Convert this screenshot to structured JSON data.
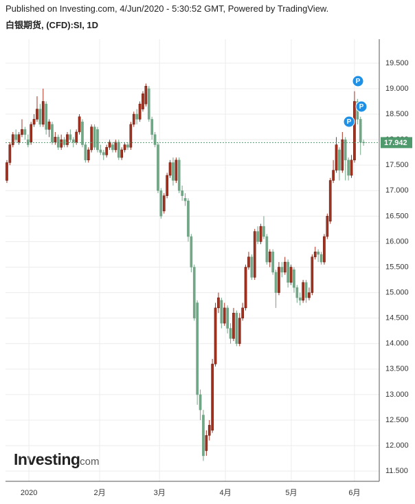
{
  "header": {
    "published": "Published on Investing.com, 4/Jun/2020 - 5:30:52 GMT, Powered by TradingView.",
    "title": "白银期货, (CFD):SI, 1D"
  },
  "logo": {
    "brand": "Investing",
    "suffix": ".com"
  },
  "markers": [
    "P",
    "P",
    "P"
  ],
  "chart_data": {
    "type": "candlestick",
    "up_color": "#a5301e",
    "down_color": "#71a686",
    "grid": true,
    "xlim": [
      -0.45,
      123.2
    ],
    "xticks": [
      {
        "value": 7.3,
        "label": "2020"
      },
      {
        "value": 30.7,
        "label": "2月"
      },
      {
        "value": 50.5,
        "label": "3月"
      },
      {
        "value": 72.3,
        "label": "4月"
      },
      {
        "value": 94.1,
        "label": "5月"
      },
      {
        "value": 115,
        "label": "6月"
      }
    ],
    "ylim": [
      11.3,
      19.97
    ],
    "yticks": [
      {
        "value": 11.5,
        "label": "11.500"
      },
      {
        "value": 12,
        "label": "12.000"
      },
      {
        "value": 12.5,
        "label": "12.500"
      },
      {
        "value": 13,
        "label": "13.000"
      },
      {
        "value": 13.5,
        "label": "13.500"
      },
      {
        "value": 14,
        "label": "14.000"
      },
      {
        "value": 14.5,
        "label": "14.500"
      },
      {
        "value": 15,
        "label": "15.000"
      },
      {
        "value": 15.5,
        "label": "15.500"
      },
      {
        "value": 16,
        "label": "16.000"
      },
      {
        "value": 16.5,
        "label": "16.500"
      },
      {
        "value": 17,
        "label": "17.000"
      },
      {
        "value": 17.5,
        "label": "17.500"
      },
      {
        "value": 18,
        "label": "18.000"
      },
      {
        "value": 18.5,
        "label": "18.500"
      },
      {
        "value": 19,
        "label": "19.000"
      },
      {
        "value": 19.5,
        "label": "19.500"
      }
    ],
    "last_price": 17.942,
    "last_price_color": "#4f9a6d",
    "open": [
      17.2,
      17.55,
      17.9,
      18.1,
      17.95,
      18.1,
      18.2,
      18.0,
      17.95,
      18.3,
      18.4,
      18.6,
      18.3,
      18.7,
      18.2,
      18.3,
      17.95,
      18.05,
      17.85,
      18.0,
      17.9,
      18.1,
      18.0,
      17.95,
      18.15,
      18.35,
      17.9,
      17.6,
      17.8,
      18.25,
      18.2,
      17.8,
      17.75,
      17.7,
      17.85,
      17.9,
      17.8,
      17.95,
      17.65,
      17.8,
      17.9,
      17.85,
      18.3,
      18.5,
      18.4,
      18.6,
      18.7,
      19.0,
      18.4,
      18.1,
      17.9,
      17.0,
      16.6,
      16.9,
      17.3,
      17.55,
      17.2,
      17.6,
      17.0,
      16.85,
      16.8,
      16.1,
      15.5,
      14.8,
      13.0,
      12.6,
      11.9,
      12.2,
      12.3,
      13.6,
      14.7,
      14.85,
      14.4,
      14.7,
      14.3,
      14.1,
      14.6,
      14.0,
      14.5,
      14.7,
      15.5,
      15.7,
      15.3,
      16.2,
      16.0,
      16.3,
      16.1,
      15.6,
      15.8,
      15.4,
      15.0,
      15.5,
      15.4,
      15.6,
      15.2,
      15.45,
      15.1,
      14.9,
      14.85,
      15.2,
      14.9,
      15.0,
      15.7,
      15.8,
      15.75,
      15.6,
      16.1,
      16.4,
      17.2,
      17.4,
      17.8,
      17.4,
      18.0,
      17.6,
      17.3,
      17.6,
      18.75,
      18.4,
      17.95
    ],
    "high": [
      17.6,
      17.95,
      18.15,
      18.2,
      18.15,
      18.4,
      18.25,
      18.1,
      18.35,
      18.5,
      18.85,
      18.7,
      19.0,
      18.75,
      18.4,
      18.35,
      18.15,
      18.1,
      18.1,
      18.05,
      18.15,
      18.2,
      18.05,
      18.2,
      18.5,
      18.4,
      17.95,
      17.85,
      18.3,
      18.3,
      18.25,
      17.9,
      17.8,
      17.9,
      18.0,
      17.95,
      18.0,
      18.0,
      17.85,
      17.95,
      17.95,
      18.35,
      18.55,
      18.6,
      18.75,
      18.95,
      19.1,
      19.05,
      18.45,
      18.15,
      17.95,
      17.05,
      16.95,
      17.35,
      17.6,
      17.65,
      17.65,
      17.65,
      17.1,
      16.95,
      16.85,
      16.15,
      15.55,
      14.85,
      13.1,
      12.7,
      12.3,
      12.5,
      13.7,
      14.8,
      15.0,
      14.9,
      14.8,
      14.75,
      14.4,
      14.7,
      14.65,
      14.6,
      14.8,
      15.55,
      15.8,
      15.75,
      16.25,
      16.3,
      16.35,
      16.5,
      16.15,
      15.85,
      15.85,
      15.45,
      15.6,
      15.6,
      15.7,
      15.65,
      15.55,
      15.5,
      15.15,
      15.0,
      15.25,
      15.25,
      15.1,
      15.75,
      15.9,
      15.85,
      15.8,
      16.15,
      16.55,
      17.25,
      17.6,
      18.05,
      17.85,
      18.15,
      18.05,
      17.65,
      17.7,
      18.95,
      18.8,
      18.45,
      18.0
    ],
    "low": [
      17.15,
      17.5,
      17.85,
      17.95,
      17.9,
      18.05,
      18.0,
      17.85,
      17.9,
      18.25,
      18.35,
      18.25,
      18.25,
      18.1,
      18.05,
      17.9,
      17.9,
      17.8,
      17.8,
      17.85,
      17.85,
      17.95,
      17.85,
      17.9,
      18.1,
      17.85,
      17.55,
      17.55,
      17.75,
      17.8,
      17.75,
      17.7,
      17.6,
      17.65,
      17.8,
      17.75,
      17.75,
      17.6,
      17.6,
      17.75,
      17.8,
      17.8,
      18.25,
      18.3,
      18.35,
      18.55,
      18.65,
      18.35,
      18.0,
      17.85,
      16.95,
      16.45,
      16.55,
      16.85,
      17.25,
      17.1,
      17.15,
      16.95,
      16.8,
      16.7,
      16.0,
      15.4,
      14.45,
      12.8,
      12.5,
      11.7,
      11.8,
      12.1,
      12.25,
      13.55,
      14.6,
      14.3,
      14.35,
      14.2,
      14.0,
      14.05,
      13.95,
      13.95,
      14.45,
      14.65,
      15.45,
      15.25,
      15.25,
      15.95,
      15.95,
      16.05,
      15.55,
      15.5,
      15.35,
      14.7,
      14.95,
      15.3,
      15.35,
      15.1,
      15.15,
      15.0,
      14.8,
      14.75,
      14.8,
      14.8,
      14.85,
      14.95,
      15.65,
      15.6,
      15.55,
      15.55,
      16.05,
      16.35,
      17.15,
      17.35,
      17.2,
      17.35,
      17.2,
      17.2,
      17.25,
      17.55,
      18.3,
      17.7,
      17.88
    ],
    "close": [
      17.55,
      17.9,
      18.1,
      18.0,
      18.1,
      18.2,
      18.1,
      17.9,
      18.3,
      18.4,
      18.6,
      18.3,
      18.75,
      18.2,
      18.35,
      17.95,
      18.05,
      17.85,
      18.0,
      17.9,
      18.1,
      18.0,
      17.95,
      18.15,
      18.45,
      17.9,
      17.6,
      17.8,
      18.25,
      17.85,
      17.8,
      17.75,
      17.7,
      17.85,
      17.95,
      17.8,
      17.95,
      17.65,
      17.8,
      17.9,
      17.85,
      18.3,
      18.5,
      18.4,
      18.7,
      18.9,
      19.05,
      18.4,
      18.1,
      17.9,
      17.0,
      16.5,
      16.9,
      17.3,
      17.55,
      17.2,
      17.6,
      17.0,
      16.9,
      16.8,
      16.1,
      15.5,
      14.5,
      13.0,
      12.7,
      11.8,
      12.2,
      12.4,
      13.6,
      14.7,
      14.9,
      14.4,
      14.7,
      14.3,
      14.1,
      14.6,
      14.0,
      14.5,
      14.7,
      15.5,
      15.7,
      15.3,
      16.2,
      16.0,
      16.3,
      16.1,
      15.6,
      15.8,
      15.4,
      15.0,
      15.5,
      15.4,
      15.6,
      15.2,
      15.5,
      15.1,
      14.9,
      14.85,
      15.2,
      14.9,
      15.0,
      15.7,
      15.8,
      15.75,
      15.6,
      16.1,
      16.5,
      17.2,
      17.4,
      17.9,
      17.4,
      18.0,
      17.6,
      17.3,
      17.6,
      18.75,
      18.4,
      17.95,
      17.942
    ]
  }
}
